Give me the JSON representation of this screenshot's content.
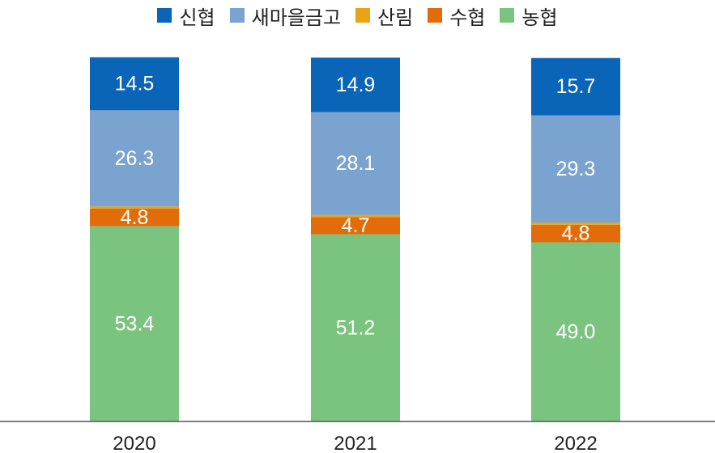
{
  "chart_data": {
    "type": "bar",
    "stacked": true,
    "title": "",
    "xlabel": "",
    "ylabel": "",
    "categories": [
      "2020",
      "2021",
      "2022"
    ],
    "series": [
      {
        "name": "농협",
        "color": "#7BC47F",
        "values": [
          53.4,
          51.2,
          49.0
        ],
        "labels": [
          "53.4",
          "51.2",
          "49.0"
        ]
      },
      {
        "name": "수협",
        "color": "#E36C0A",
        "values": [
          4.8,
          4.7,
          4.8
        ],
        "labels": [
          "4.8",
          "4.7",
          "4.8"
        ]
      },
      {
        "name": "산림",
        "color": "#E8A317",
        "values": [
          0.6,
          0.6,
          0.6
        ],
        "labels": [
          "",
          "",
          ""
        ]
      },
      {
        "name": "새마을금고",
        "color": "#7BA3CF",
        "values": [
          26.3,
          28.1,
          29.3
        ],
        "labels": [
          "26.3",
          "28.1",
          "29.3"
        ]
      },
      {
        "name": "신협",
        "color": "#0A64B8",
        "values": [
          14.5,
          14.9,
          15.7
        ],
        "labels": [
          "14.5",
          "14.9",
          "15.7"
        ]
      }
    ],
    "legend_order": [
      "신협",
      "새마을금고",
      "산림",
      "수협",
      "농협"
    ],
    "legend_position": "top",
    "ylim": [
      0,
      100
    ],
    "grid": false
  }
}
